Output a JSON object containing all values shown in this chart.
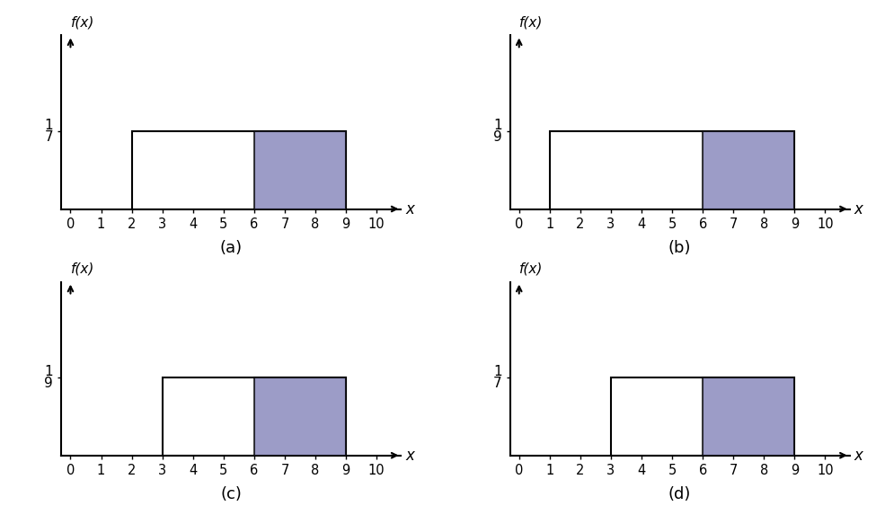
{
  "graphs": [
    {
      "label": "(a)",
      "x_start": 2,
      "x_end": 9,
      "height": 1,
      "height_display": 0.45,
      "height_label_num": "1",
      "height_label_den": "7",
      "shade_start": 6,
      "shade_end": 9,
      "x_ticks": [
        0,
        1,
        2,
        3,
        4,
        5,
        6,
        7,
        8,
        9,
        10
      ],
      "x_lim": [
        -0.3,
        10.8
      ],
      "y_lim": [
        0,
        2.2
      ]
    },
    {
      "label": "(b)",
      "x_start": 1,
      "x_end": 9,
      "height": 1,
      "height_display": 0.45,
      "height_label_num": "1",
      "height_label_den": "9",
      "shade_start": 6,
      "shade_end": 9,
      "x_ticks": [
        0,
        1,
        2,
        3,
        4,
        5,
        6,
        7,
        8,
        9,
        10
      ],
      "x_lim": [
        -0.3,
        10.8
      ],
      "y_lim": [
        0,
        2.2
      ]
    },
    {
      "label": "(c)",
      "x_start": 3,
      "x_end": 9,
      "height": 1,
      "height_display": 0.45,
      "height_label_num": "1",
      "height_label_den": "9",
      "shade_start": 6,
      "shade_end": 9,
      "x_ticks": [
        0,
        1,
        2,
        3,
        4,
        5,
        6,
        7,
        8,
        9,
        10
      ],
      "x_lim": [
        -0.3,
        10.8
      ],
      "y_lim": [
        0,
        2.2
      ]
    },
    {
      "label": "(d)",
      "x_start": 3,
      "x_end": 9,
      "height": 1,
      "height_display": 0.45,
      "height_label_num": "1",
      "height_label_den": "7",
      "shade_start": 6,
      "shade_end": 9,
      "x_ticks": [
        0,
        1,
        2,
        3,
        4,
        5,
        6,
        7,
        8,
        9,
        10
      ],
      "x_lim": [
        -0.3,
        10.8
      ],
      "y_lim": [
        0,
        2.2
      ]
    }
  ],
  "shade_color": "#7b7bb5",
  "shade_alpha": 0.75,
  "rect_edgecolor": "#000000",
  "axis_color": "#000000",
  "bg_color": "#ffffff",
  "tick_fontsize": 10.5,
  "label_fontsize": 12,
  "ylabel_fontsize": 11,
  "ytick_fontsize": 11,
  "subplot_label_fontsize": 13
}
